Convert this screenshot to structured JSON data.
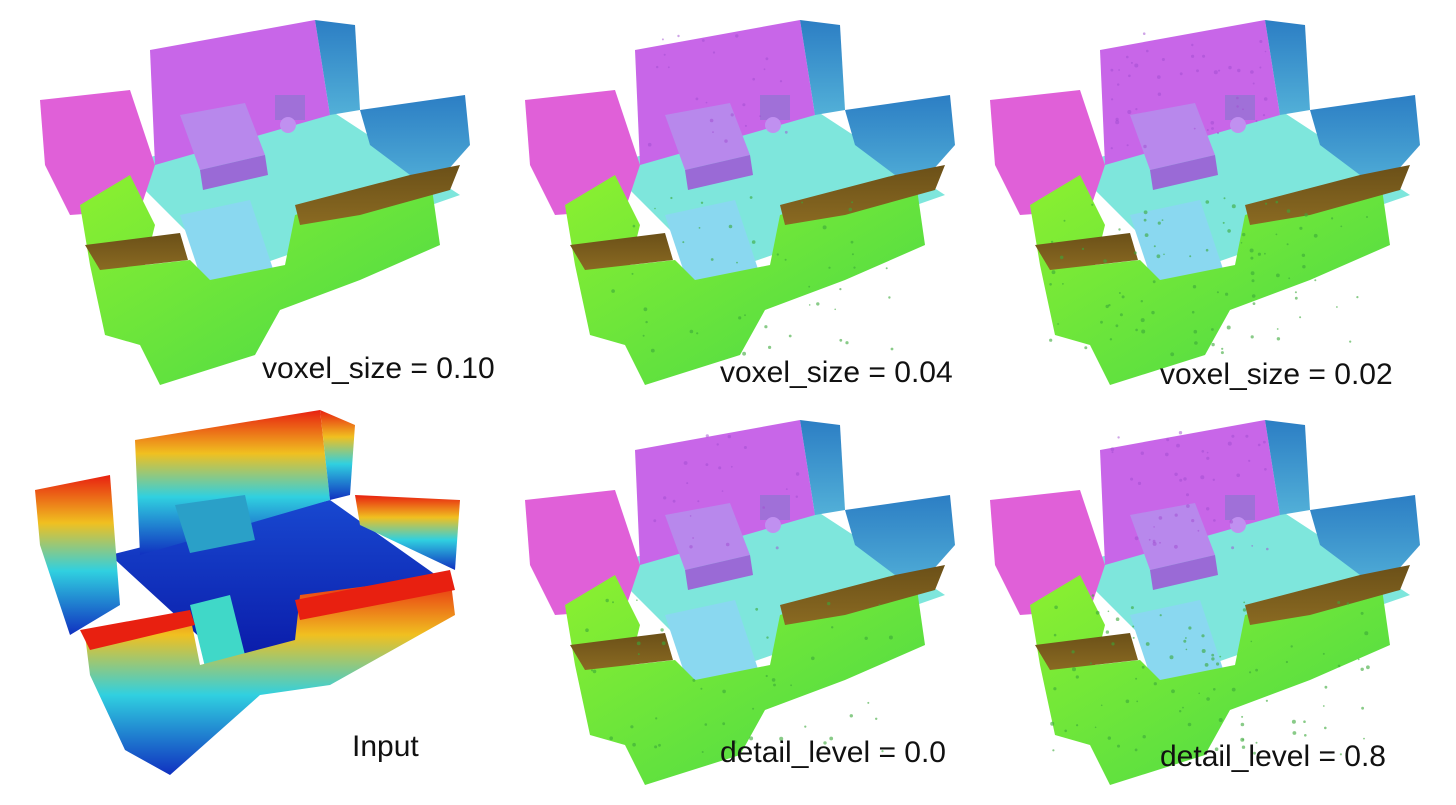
{
  "panels": [
    {
      "id": "p1",
      "caption": "voxel_size = 0.10",
      "style": "normal",
      "detail": 0
    },
    {
      "id": "p2",
      "caption": "voxel_size = 0.04",
      "style": "normal",
      "detail": 1
    },
    {
      "id": "p3",
      "caption": "voxel_size = 0.02",
      "style": "normal",
      "detail": 2
    },
    {
      "id": "p4",
      "caption": "Input",
      "style": "depth",
      "detail": 0
    },
    {
      "id": "p5",
      "caption": "detail_level = 0.0",
      "style": "normal",
      "detail": 1
    },
    {
      "id": "p6",
      "caption": "detail_level = 0.8",
      "style": "normal",
      "detail": 2
    }
  ],
  "colors": {
    "back_wall": "#c866e8",
    "left_wall": "#e060d8",
    "floor": "#7ee6dc",
    "front_wall": "#66e63a",
    "right_wall": "#3a8ecc",
    "brown": "#8a6a22",
    "depth_low": "#1030c0",
    "depth_mid": "#30d0e0",
    "depth_high": "#e82010"
  }
}
